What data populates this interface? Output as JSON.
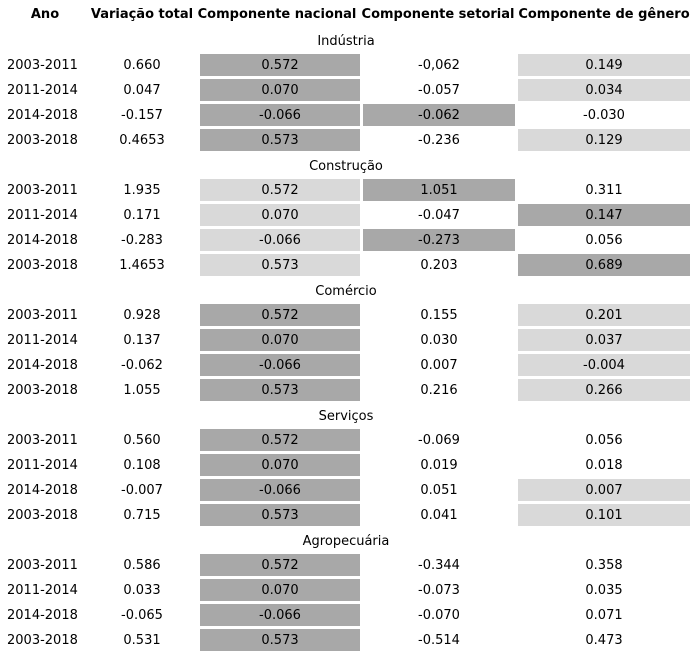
{
  "chart_data": {
    "type": "table",
    "columns": [
      "Ano",
      "Variação total",
      "Componente nacional",
      "Componente setorial",
      "Componente de gênero"
    ],
    "highlight_colors": {
      "dark": "#a8a8a8",
      "light": "#d9d9d9"
    },
    "sections": [
      {
        "title": "Indústria",
        "rows": [
          {
            "ano": "2003-2011",
            "total": "0.660",
            "nacional": "0.572",
            "nacional_bg": "dark",
            "setorial": "-0,062",
            "setorial_bg": "none",
            "genero": "0.149",
            "genero_bg": "light"
          },
          {
            "ano": "2011-2014",
            "total": "0.047",
            "nacional": "0.070",
            "nacional_bg": "dark",
            "setorial": "-0.057",
            "setorial_bg": "none",
            "genero": "0.034",
            "genero_bg": "light"
          },
          {
            "ano": "2014-2018",
            "total": "-0.157",
            "nacional": "-0.066",
            "nacional_bg": "dark",
            "setorial": "-0.062",
            "setorial_bg": "dark",
            "genero": "-0.030",
            "genero_bg": "none"
          },
          {
            "ano": "2003-2018",
            "total": "0.4653",
            "nacional": "0.573",
            "nacional_bg": "dark",
            "setorial": "-0.236",
            "setorial_bg": "none",
            "genero": "0.129",
            "genero_bg": "light"
          }
        ]
      },
      {
        "title": "Construção",
        "rows": [
          {
            "ano": "2003-2011",
            "total": "1.935",
            "nacional": "0.572",
            "nacional_bg": "light",
            "setorial": "1.051",
            "setorial_bg": "dark",
            "genero": "0.311",
            "genero_bg": "none"
          },
          {
            "ano": "2011-2014",
            "total": "0.171",
            "nacional": "0.070",
            "nacional_bg": "light",
            "setorial": "-0.047",
            "setorial_bg": "none",
            "genero": "0.147",
            "genero_bg": "dark"
          },
          {
            "ano": "2014-2018",
            "total": "-0.283",
            "nacional": "-0.066",
            "nacional_bg": "light",
            "setorial": "-0.273",
            "setorial_bg": "dark",
            "genero": "0.056",
            "genero_bg": "none"
          },
          {
            "ano": "2003-2018",
            "total": "1.4653",
            "nacional": "0.573",
            "nacional_bg": "light",
            "setorial": "0.203",
            "setorial_bg": "none",
            "genero": "0.689",
            "genero_bg": "dark"
          }
        ]
      },
      {
        "title": "Comércio",
        "rows": [
          {
            "ano": "2003-2011",
            "total": "0.928",
            "nacional": "0.572",
            "nacional_bg": "dark",
            "setorial": "0.155",
            "setorial_bg": "none",
            "genero": "0.201",
            "genero_bg": "light"
          },
          {
            "ano": "2011-2014",
            "total": "0.137",
            "nacional": "0.070",
            "nacional_bg": "dark",
            "setorial": "0.030",
            "setorial_bg": "none",
            "genero": "0.037",
            "genero_bg": "light"
          },
          {
            "ano": "2014-2018",
            "total": "-0.062",
            "nacional": "-0.066",
            "nacional_bg": "dark",
            "setorial": "0.007",
            "setorial_bg": "none",
            "genero": "-0.004",
            "genero_bg": "light"
          },
          {
            "ano": "2003-2018",
            "total": "1.055",
            "nacional": "0.573",
            "nacional_bg": "dark",
            "setorial": "0.216",
            "setorial_bg": "none",
            "genero": "0.266",
            "genero_bg": "light"
          }
        ]
      },
      {
        "title": "Serviços",
        "rows": [
          {
            "ano": "2003-2011",
            "total": "0.560",
            "nacional": "0.572",
            "nacional_bg": "dark",
            "setorial": "-0.069",
            "setorial_bg": "none",
            "genero": "0.056",
            "genero_bg": "none"
          },
          {
            "ano": "2011-2014",
            "total": "0.108",
            "nacional": "0.070",
            "nacional_bg": "dark",
            "setorial": "0.019",
            "setorial_bg": "none",
            "genero": "0.018",
            "genero_bg": "none"
          },
          {
            "ano": "2014-2018",
            "total": "-0.007",
            "nacional": "-0.066",
            "nacional_bg": "dark",
            "setorial": "0.051",
            "setorial_bg": "none",
            "genero": "0.007",
            "genero_bg": "light"
          },
          {
            "ano": "2003-2018",
            "total": "0.715",
            "nacional": "0.573",
            "nacional_bg": "dark",
            "setorial": "0.041",
            "setorial_bg": "none",
            "genero": "0.101",
            "genero_bg": "light"
          }
        ]
      },
      {
        "title": "Agropecuária",
        "rows": [
          {
            "ano": "2003-2011",
            "total": "0.586",
            "nacional": "0.572",
            "nacional_bg": "dark",
            "setorial": "-0.344",
            "setorial_bg": "none",
            "genero": "0.358",
            "genero_bg": "none"
          },
          {
            "ano": "2011-2014",
            "total": "0.033",
            "nacional": "0.070",
            "nacional_bg": "dark",
            "setorial": "-0.073",
            "setorial_bg": "none",
            "genero": "0.035",
            "genero_bg": "none"
          },
          {
            "ano": "2014-2018",
            "total": "-0.065",
            "nacional": "-0.066",
            "nacional_bg": "dark",
            "setorial": "-0.070",
            "setorial_bg": "none",
            "genero": "0.071",
            "genero_bg": "none"
          },
          {
            "ano": "2003-2018",
            "total": "0.531",
            "nacional": "0.573",
            "nacional_bg": "dark",
            "setorial": "-0.514",
            "setorial_bg": "none",
            "genero": "0.473",
            "genero_bg": "none"
          }
        ]
      }
    ]
  }
}
